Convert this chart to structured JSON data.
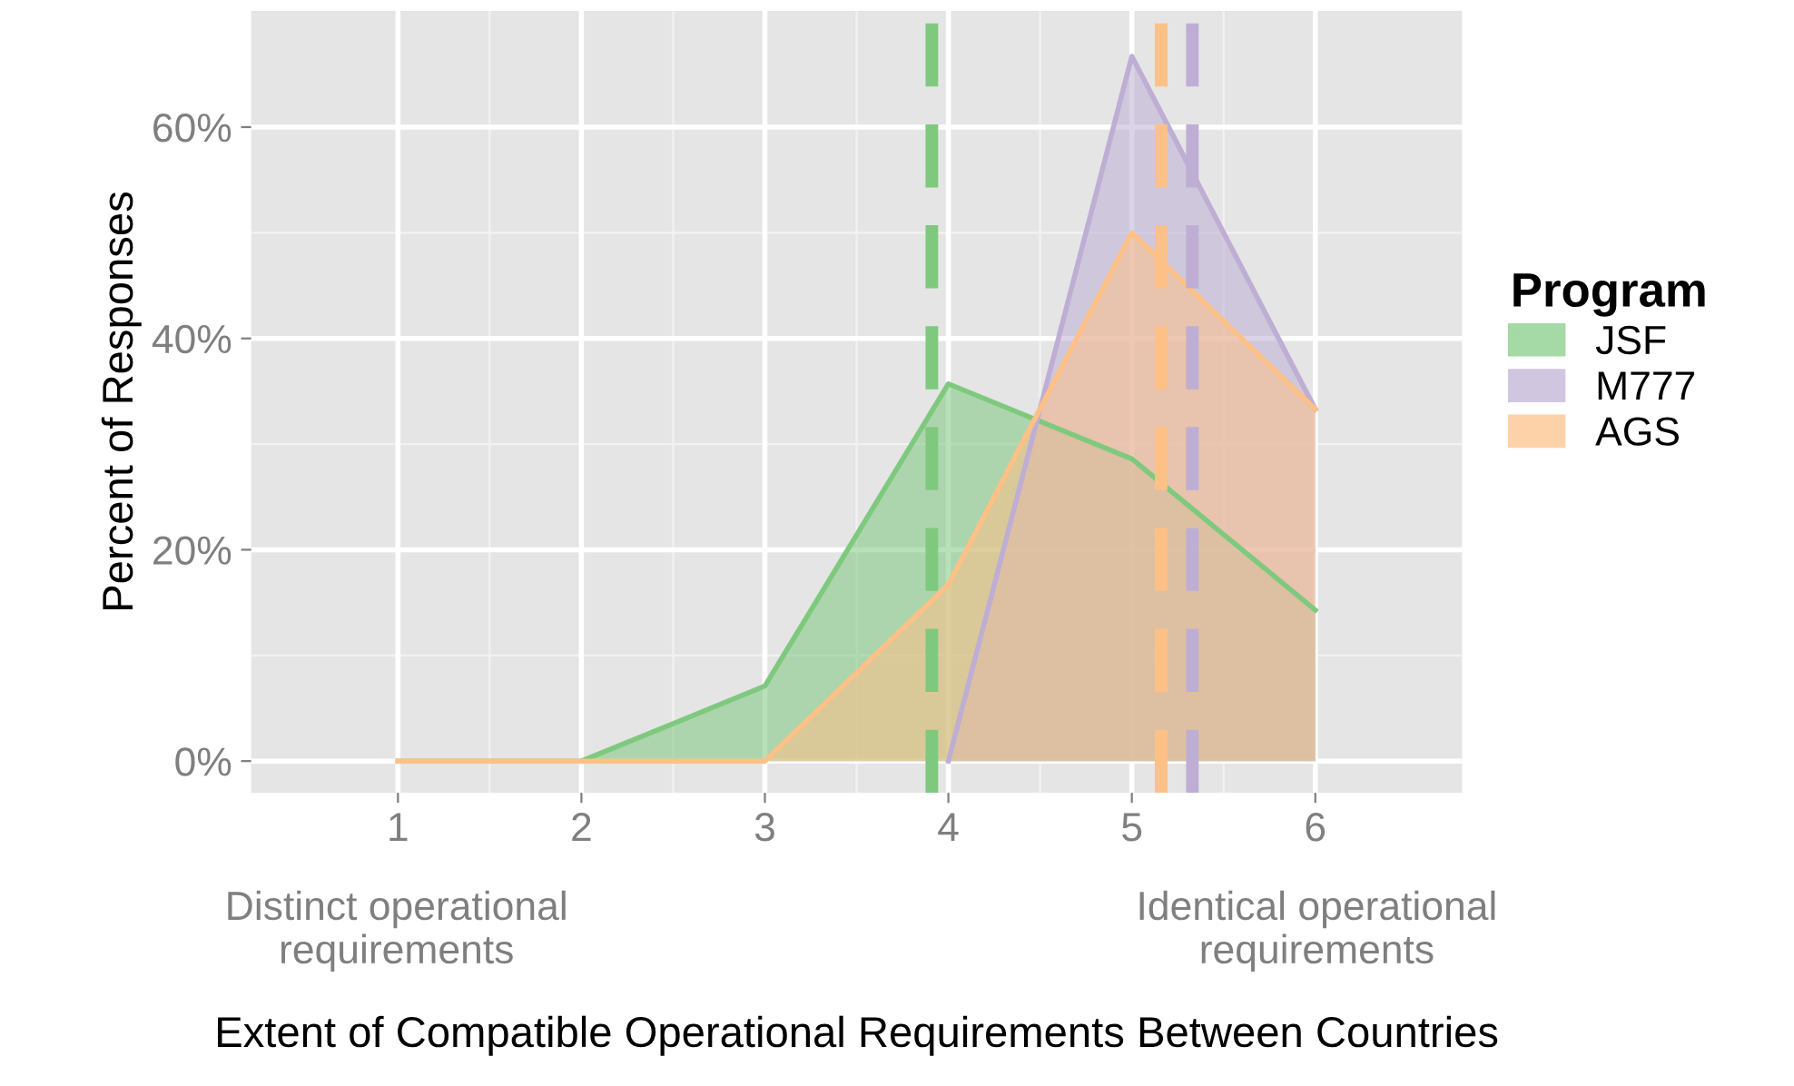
{
  "chart_data": {
    "type": "area",
    "xlabel": "Extent of Compatible Operational Requirements Between Countries",
    "ylabel": "Percent of Responses",
    "legend_title": "Program",
    "x": [
      1,
      2,
      3,
      4,
      5,
      6
    ],
    "series": [
      {
        "name": "JSF",
        "color": "#7fc97f",
        "values": [
          0,
          0,
          7.1,
          35.7,
          28.6,
          14.3
        ]
      },
      {
        "name": "M777",
        "color": "#beaed4",
        "values": [
          null,
          null,
          null,
          0,
          66.7,
          33.3
        ]
      },
      {
        "name": "AGS",
        "color": "#fdc086",
        "values": [
          0,
          0,
          0,
          16.7,
          50,
          33.3
        ]
      }
    ],
    "xlim": [
      0.2,
      6.8
    ],
    "xticks": [
      1,
      2,
      3,
      4,
      5,
      6
    ],
    "ylim": [
      -3,
      71
    ],
    "yticks": [
      {
        "value": 0,
        "label": "0%"
      },
      {
        "value": 20,
        "label": "20%"
      },
      {
        "value": 40,
        "label": "40%"
      },
      {
        "value": 60,
        "label": "60%"
      }
    ],
    "ref_lines": [
      {
        "axis": "x",
        "value": 3.91,
        "color": "#7fc97f",
        "line_style": "dashed"
      },
      {
        "axis": "x",
        "value": 5.33,
        "color": "#beaed4",
        "line_style": "dashed"
      },
      {
        "axis": "x",
        "value": 5.16,
        "color": "#fdc086",
        "line_style": "dashed"
      }
    ],
    "annotations": [
      "Distinct operational\nrequirements",
      "Identical operational\nrequirements"
    ],
    "grid": true,
    "legend": "right"
  }
}
